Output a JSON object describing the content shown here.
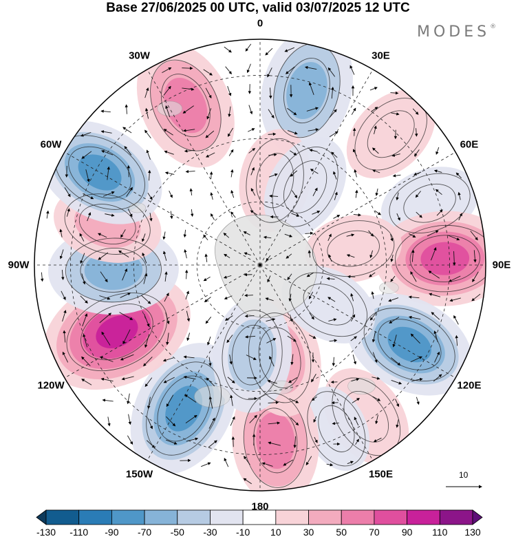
{
  "title": "Base 27/06/2025 00 UTC, valid 03/07/2025 12 UTC",
  "brand": "MODES",
  "brand_mark": "®",
  "longitude_labels": [
    {
      "text": "0",
      "deg": 0
    },
    {
      "text": "30E",
      "deg": 30
    },
    {
      "text": "60E",
      "deg": 60
    },
    {
      "text": "90E",
      "deg": 90
    },
    {
      "text": "120E",
      "deg": 120
    },
    {
      "text": "150E",
      "deg": 150
    },
    {
      "text": "180",
      "deg": 180
    },
    {
      "text": "150W",
      "deg": 210
    },
    {
      "text": "120W",
      "deg": 240
    },
    {
      "text": "90W",
      "deg": 270
    },
    {
      "text": "60W",
      "deg": 300
    },
    {
      "text": "30W",
      "deg": 330
    }
  ],
  "reference_vector_label": "10",
  "colorbar": {
    "ticks": [
      "-130",
      "-110",
      "-90",
      "-70",
      "-50",
      "-30",
      "-10",
      "10",
      "30",
      "50",
      "70",
      "90",
      "110",
      "130"
    ],
    "colors": [
      "#0d3a5c",
      "#125c8f",
      "#2a7cb6",
      "#4f97c8",
      "#86b3d8",
      "#b6cbe3",
      "#e2e4f0",
      "#ffffff",
      "#f8d3d8",
      "#f3abbe",
      "#ec7eaa",
      "#e04f9e",
      "#c8219a",
      "#8c1589",
      "#5e0e78"
    ]
  },
  "anomalies": [
    {
      "lon": 335,
      "r": 0.78,
      "val": 80
    },
    {
      "lon": 15,
      "r": 0.8,
      "val": -80
    },
    {
      "lon": 45,
      "r": 0.82,
      "val": 35
    },
    {
      "lon": 70,
      "r": 0.8,
      "val": -30
    },
    {
      "lon": 88,
      "r": 0.82,
      "val": 95
    },
    {
      "lon": 118,
      "r": 0.75,
      "val": -85
    },
    {
      "lon": 145,
      "r": 0.82,
      "val": 40
    },
    {
      "lon": 155,
      "r": 0.8,
      "val": -10
    },
    {
      "lon": 175,
      "r": 0.78,
      "val": 75
    },
    {
      "lon": 168,
      "r": 0.42,
      "val": 60
    },
    {
      "lon": 208,
      "r": 0.72,
      "val": -95
    },
    {
      "lon": 185,
      "r": 0.4,
      "val": -55
    },
    {
      "lon": 245,
      "r": 0.7,
      "val": 120
    },
    {
      "lon": 268,
      "r": 0.65,
      "val": -80
    },
    {
      "lon": 285,
      "r": 0.7,
      "val": 45
    },
    {
      "lon": 300,
      "r": 0.82,
      "val": -85
    },
    {
      "lon": 10,
      "r": 0.38,
      "val": 35
    },
    {
      "lon": 30,
      "r": 0.4,
      "val": -40
    },
    {
      "lon": 80,
      "r": 0.42,
      "val": 25
    },
    {
      "lon": 120,
      "r": 0.35,
      "val": -30
    }
  ]
}
